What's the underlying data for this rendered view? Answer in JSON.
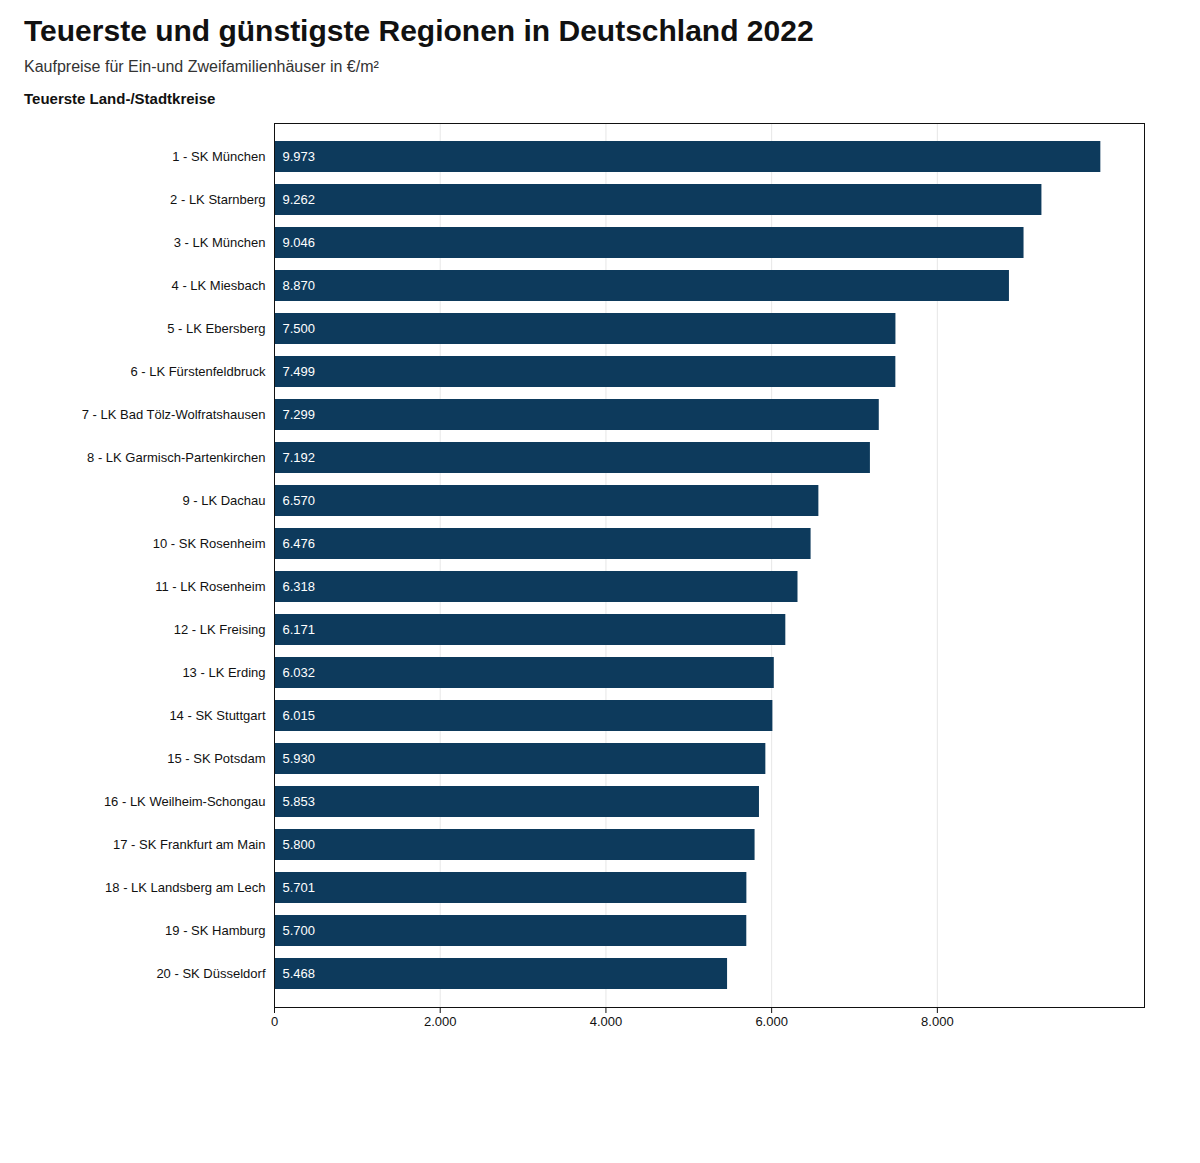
{
  "chart_data": {
    "type": "bar",
    "orientation": "horizontal",
    "title": "Teuerste und günstigste Regionen in Deutschland 2022",
    "subtitle": "Kaufpreise für Ein-und Zweifamilienhäuser in €/m²",
    "annotations": [
      "Teuerste Land-/Stadtkreise"
    ],
    "categories": [
      "1 - SK München",
      "2 - LK Starnberg",
      "3 - LK München",
      "4 - LK Miesbach",
      "5 - LK Ebersberg",
      "6 - LK Fürstenfeldbruck",
      "7 - LK Bad Tölz-Wolfratshausen",
      "8 - LK Garmisch-Partenkirchen",
      "9 - LK Dachau",
      "10 - SK Rosenheim",
      "11 - LK Rosenheim",
      "12 - LK Freising",
      "13 - LK Erding",
      "14 - SK Stuttgart",
      "15 - SK Potsdam",
      "16 - LK Weilheim-Schongau",
      "17 - SK Frankfurt am Main",
      "18 - LK Landsberg am Lech",
      "19 - SK Hamburg",
      "20 - SK Düsseldorf"
    ],
    "values": [
      9973,
      9262,
      9046,
      8870,
      7500,
      7499,
      7299,
      7192,
      6570,
      6476,
      6318,
      6171,
      6032,
      6015,
      5930,
      5853,
      5800,
      5701,
      5700,
      5468
    ],
    "value_labels": [
      "9.973",
      "9.262",
      "9.046",
      "8.870",
      "7.500",
      "7.499",
      "7.299",
      "7.192",
      "6.570",
      "6.476",
      "6.318",
      "6.171",
      "6.032",
      "6.015",
      "5.930",
      "5.853",
      "5.800",
      "5.701",
      "5.700",
      "5.468"
    ],
    "data_labels": true,
    "color": "#0d3a5c",
    "xlim": [
      0,
      10500
    ],
    "xticks": [
      0,
      {
        "value": 2000,
        "label": "2.000"
      },
      {
        "value": 4000,
        "label": "4.000"
      },
      {
        "value": 6000,
        "label": "6.000"
      },
      {
        "value": 8000,
        "label": "8.000"
      }
    ],
    "grid": true
  }
}
